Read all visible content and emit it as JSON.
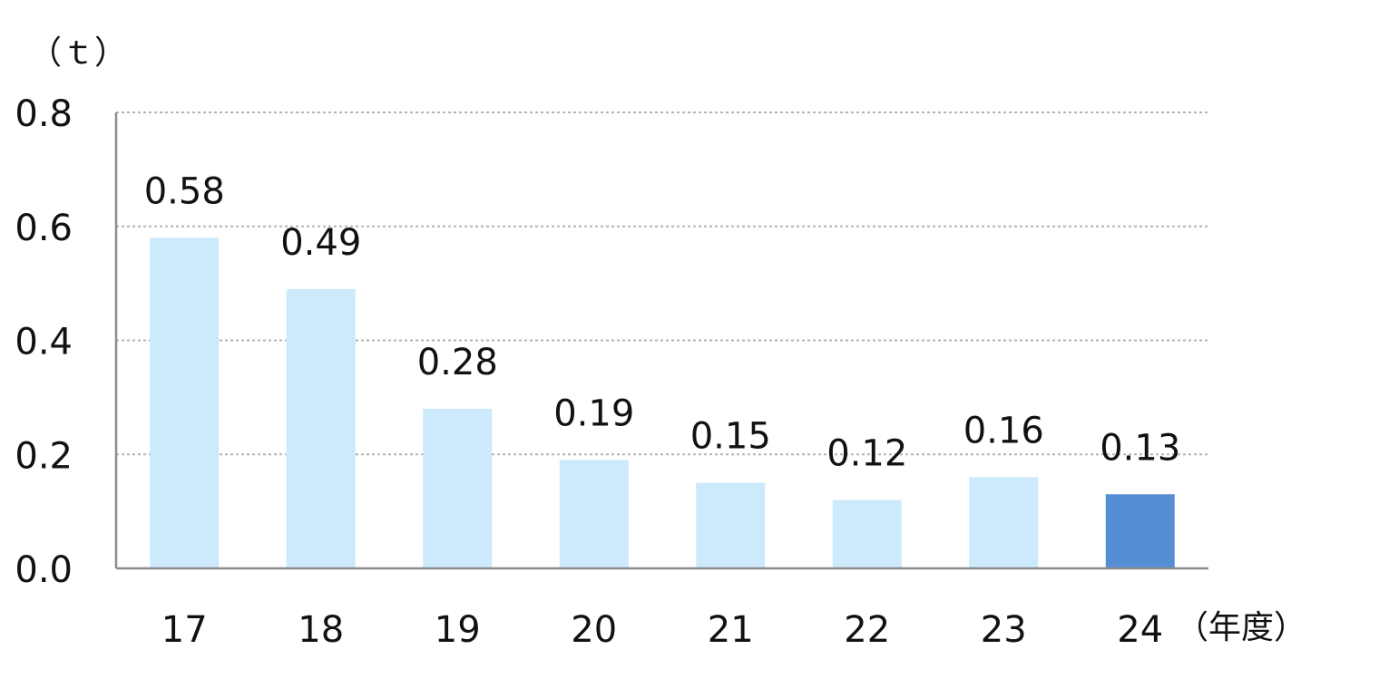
{
  "chart_data": {
    "type": "bar",
    "y_unit_label": "（ｔ）",
    "x_unit_label": "（年度）",
    "categories": [
      "17",
      "18",
      "19",
      "20",
      "21",
      "22",
      "23",
      "24"
    ],
    "values": [
      0.58,
      0.49,
      0.28,
      0.19,
      0.15,
      0.12,
      0.16,
      0.13
    ],
    "data_labels": [
      "0.58",
      "0.49",
      "0.28",
      "0.19",
      "0.15",
      "0.12",
      "0.16",
      "0.13"
    ],
    "ylim": [
      0,
      0.8
    ],
    "y_ticks": [
      0,
      0.2,
      0.4,
      0.6,
      0.8
    ],
    "y_tick_labels": [
      "0.0",
      "0.2",
      "0.4",
      "0.6",
      "0.8"
    ],
    "grid": true,
    "colors": {
      "bar": "#cceafb",
      "highlight_bar": "#568ed6",
      "highlight_index": 7
    }
  }
}
